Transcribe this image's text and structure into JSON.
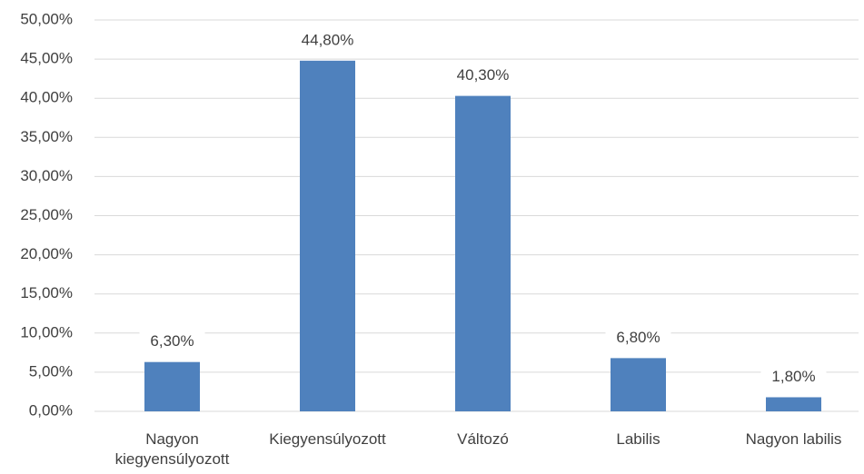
{
  "chart_data": {
    "type": "bar",
    "categories": [
      "Nagyon kiegyensúlyozott",
      "Kiegyensúlyozott",
      "Változó",
      "Labilis",
      "Nagyon labilis"
    ],
    "values": [
      6.3,
      44.8,
      40.3,
      6.8,
      1.8
    ],
    "value_labels": [
      "6,30%",
      "44,80%",
      "40,30%",
      "6,80%",
      "1,80%"
    ],
    "color": "#4f81bd",
    "ylim": [
      0,
      50
    ],
    "yticks": [
      {
        "value": 0,
        "label": "0,00%"
      },
      {
        "value": 5,
        "label": "5,00%"
      },
      {
        "value": 10,
        "label": "10,00%"
      },
      {
        "value": 15,
        "label": "15,00%"
      },
      {
        "value": 20,
        "label": "20,00%"
      },
      {
        "value": 25,
        "label": "25,00%"
      },
      {
        "value": 30,
        "label": "30,00%"
      },
      {
        "value": 35,
        "label": "35,00%"
      },
      {
        "value": 40,
        "label": "40,00%"
      },
      {
        "value": 45,
        "label": "45,00%"
      },
      {
        "value": 50,
        "label": "50,00%"
      }
    ],
    "grid": true
  }
}
